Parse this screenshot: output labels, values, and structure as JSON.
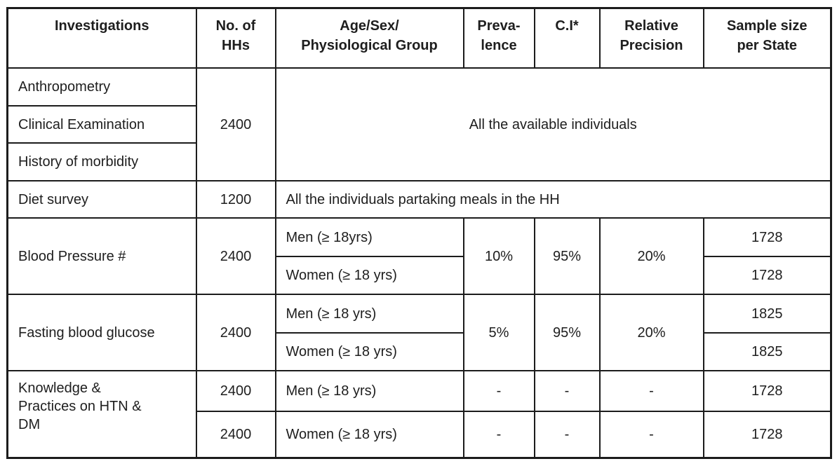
{
  "table": {
    "header": {
      "investigations": "Investigations",
      "no_of_hhs": "No. of\nHHs",
      "age_sex_group": "Age/Sex/\nPhysiological Group",
      "prevalence": "Preva-\nlence",
      "ci": "C.I*",
      "relative_precision": "Relative\nPrecision",
      "sample_size": "Sample size\nper State"
    },
    "group_all_individuals": {
      "investigations": [
        "Anthropometry",
        "Clinical Examination",
        "History of morbidity"
      ],
      "row1": "Anthropometry",
      "row2": "Clinical Examination",
      "row3": "History of morbidity",
      "hhs": "2400",
      "note": "All the available individuals"
    },
    "diet_survey": {
      "investigation": "Diet survey",
      "hhs": "1200",
      "note": "All the individuals partaking meals in the HH"
    },
    "blood_pressure": {
      "investigation": "Blood Pressure #",
      "hhs": "2400",
      "group_men": "Men (≥ 18yrs)",
      "group_women": "Women (≥ 18 yrs)",
      "prevalence": "10%",
      "ci": "95%",
      "relative_precision": "20%",
      "sample_men": "1728",
      "sample_women": "1728"
    },
    "fasting_blood_glucose": {
      "investigation": "Fasting blood glucose",
      "hhs": "2400",
      "group_men": "Men (≥ 18 yrs)",
      "group_women": "Women (≥ 18 yrs)",
      "prevalence": "5%",
      "ci": "95%",
      "relative_precision": "20%",
      "sample_men": "1825",
      "sample_women": "1825"
    },
    "knowledge_practices": {
      "investigation": "Knowledge &\nPractices on HTN &\nDM",
      "hhs_men": "2400",
      "hhs_women": "2400",
      "group_men": "Men (≥ 18 yrs)",
      "group_women": "Women (≥ 18 yrs)",
      "prevalence_dash": "-",
      "ci_dash": "-",
      "relative_precision_dash": "-",
      "sample_men": "1728",
      "sample_women": "1728"
    }
  }
}
